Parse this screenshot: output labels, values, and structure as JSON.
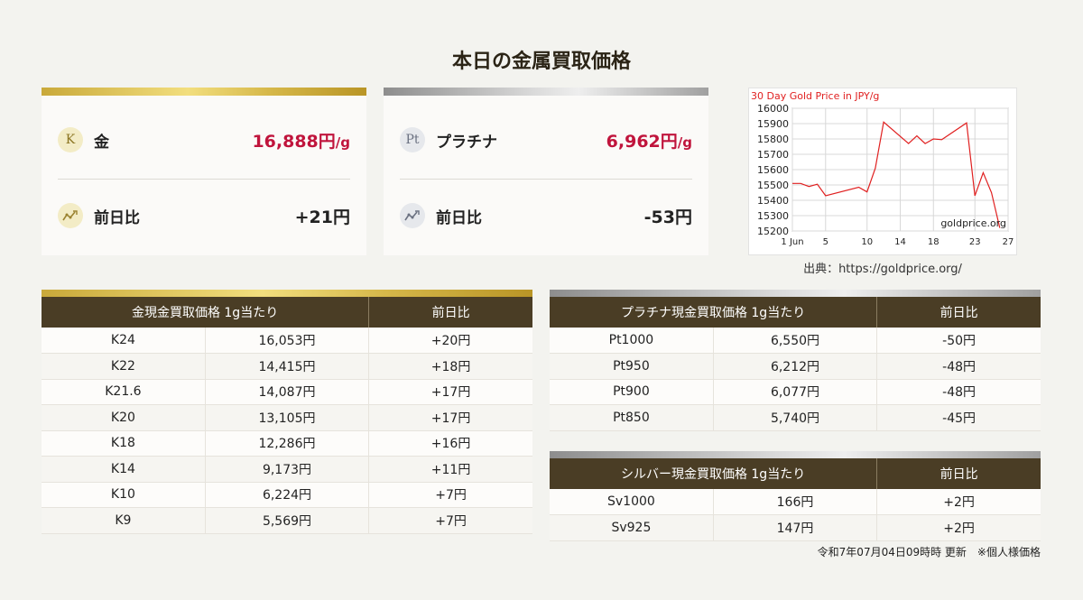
{
  "title": "本日の金属買取価格",
  "gold_card": {
    "badge": "K",
    "name": "金",
    "price": "16,888円",
    "unit": "/g",
    "change_label": "前日比",
    "change": "+21円",
    "trend_icon": "trend-chart-icon"
  },
  "platinum_card": {
    "badge": "Pt",
    "name": "プラチナ",
    "price": "6,962円",
    "unit": "/g",
    "change_label": "前日比",
    "change": "-53円",
    "trend_icon": "trend-chart-icon"
  },
  "chart_source": "出典：https://goldprice.org/",
  "chart_data": {
    "type": "line",
    "title": "30 Day Gold Price in JPY/g",
    "watermark": "goldprice.org",
    "x_ticks": [
      "1 Jun",
      "5",
      "10",
      "14",
      "18",
      "23",
      "27"
    ],
    "x_tick_days": [
      1,
      5,
      10,
      14,
      18,
      23,
      27
    ],
    "ylim": [
      15200,
      16000
    ],
    "y_ticks": [
      "16000",
      "15900",
      "15800",
      "15700",
      "15600",
      "15500",
      "15400",
      "15300",
      "15200"
    ],
    "grid": true,
    "series": [
      {
        "color": "#e02020",
        "points": [
          [
            1,
            15510
          ],
          [
            2,
            15510
          ],
          [
            3,
            15490
          ],
          [
            4,
            15505
          ],
          [
            5,
            15430
          ],
          [
            9,
            15485
          ],
          [
            10,
            15455
          ],
          [
            11,
            15610
          ],
          [
            12,
            15910
          ],
          [
            15,
            15770
          ],
          [
            16,
            15820
          ],
          [
            17,
            15770
          ],
          [
            18,
            15800
          ],
          [
            19,
            15795
          ],
          [
            22,
            15905
          ],
          [
            23,
            15430
          ],
          [
            24,
            15580
          ],
          [
            25,
            15450
          ],
          [
            26,
            15220
          ]
        ]
      }
    ]
  },
  "gold_table": {
    "headers": [
      "金現金買取価格 1g当たり",
      "前日比"
    ],
    "rows": [
      [
        "K24",
        "16,053円",
        "+20円"
      ],
      [
        "K22",
        "14,415円",
        "+18円"
      ],
      [
        "K21.6",
        "14,087円",
        "+17円"
      ],
      [
        "K20",
        "13,105円",
        "+17円"
      ],
      [
        "K18",
        "12,286円",
        "+16円"
      ],
      [
        "K14",
        "9,173円",
        "+11円"
      ],
      [
        "K10",
        "6,224円",
        "+7円"
      ],
      [
        "K9",
        "5,569円",
        "+7円"
      ]
    ]
  },
  "platinum_table": {
    "headers": [
      "プラチナ現金買取価格 1g当たり",
      "前日比"
    ],
    "rows": [
      [
        "Pt1000",
        "6,550円",
        "-50円"
      ],
      [
        "Pt950",
        "6,212円",
        "-48円"
      ],
      [
        "Pt900",
        "6,077円",
        "-48円"
      ],
      [
        "Pt850",
        "5,740円",
        "-45円"
      ]
    ]
  },
  "silver_table": {
    "headers": [
      "シルバー現金買取価格 1g当たり",
      "前日比"
    ],
    "rows": [
      [
        "Sv1000",
        "166円",
        "+2円"
      ],
      [
        "Sv925",
        "147円",
        "+2円"
      ]
    ]
  },
  "update_note": "令和7年07月04日09時時 更新　※個人様価格"
}
